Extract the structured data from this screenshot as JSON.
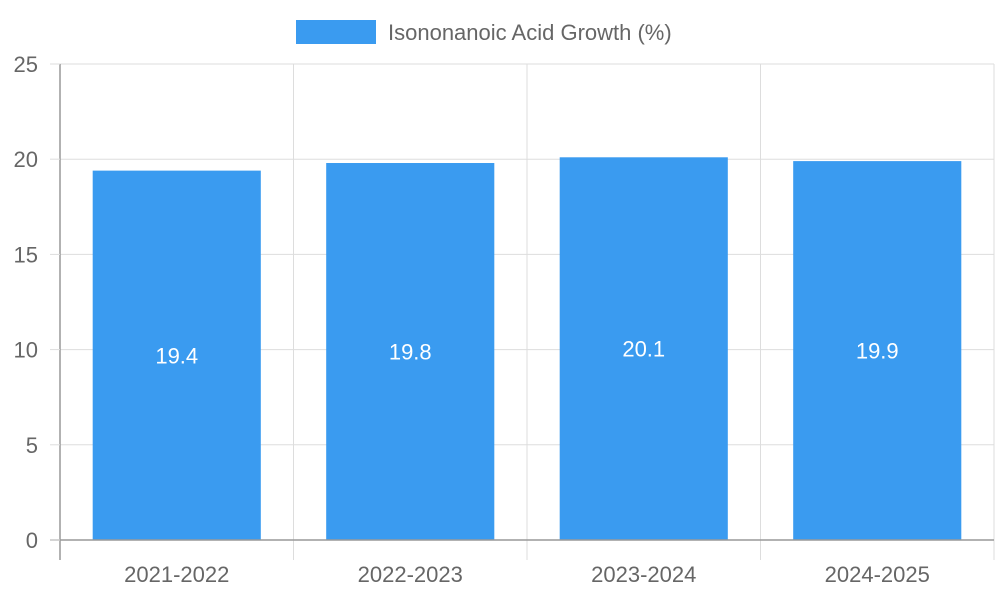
{
  "chart_data": {
    "type": "bar",
    "categories": [
      "2021-2022",
      "2022-2023",
      "2023-2024",
      "2024-2025"
    ],
    "series": [
      {
        "name": "Isononanoic Acid Growth (%)",
        "values": [
          19.4,
          19.8,
          20.1,
          19.9
        ],
        "data_labels": [
          "19.4",
          "19.8",
          "20.1",
          "19.9"
        ]
      }
    ],
    "ylim": [
      0,
      25
    ],
    "yticks": [
      0,
      5,
      10,
      15,
      20,
      25
    ],
    "grid": true,
    "legend": "top-center",
    "colors": {
      "bar": "#3a9bf0",
      "grid": "#dddddd",
      "axis": "#999999",
      "text": "#666666",
      "data_label": "#ffffff"
    }
  }
}
